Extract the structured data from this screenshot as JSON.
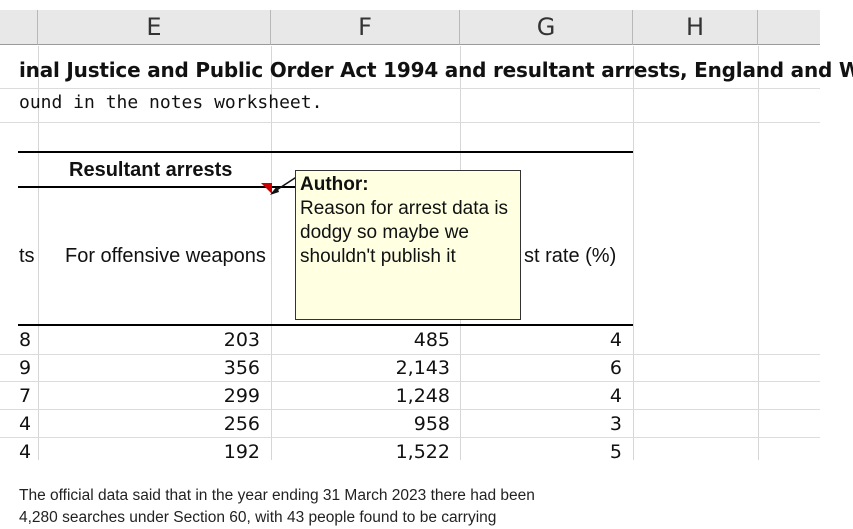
{
  "sheet": {
    "columns": [
      "E",
      "F",
      "G",
      "H"
    ],
    "title": "inal Justice and Public Order Act 1994 and resultant arrests, England and Wales",
    "note": "ound in the notes worksheet.",
    "group_header": "Resultant arrests",
    "col_header_left": "ts",
    "col_header_e": "For offensive weapons",
    "col_header_g": "st rate (%)",
    "rows": [
      {
        "d": "8",
        "e": "203",
        "f": "485",
        "g": "4"
      },
      {
        "d": "9",
        "e": "356",
        "f": "2,143",
        "g": "6"
      },
      {
        "d": "7",
        "e": "299",
        "f": "1,248",
        "g": "4"
      },
      {
        "d": "4",
        "e": "256",
        "f": "958",
        "g": "3"
      },
      {
        "d": "4",
        "e": "192",
        "f": "1,522",
        "g": "5"
      }
    ]
  },
  "comment": {
    "author": "Author:",
    "lines": [
      "Reason for arrest data is",
      "dodgy so maybe we",
      "shouldn't publish it"
    ]
  },
  "caption": {
    "lines": [
      "The official data said that in the year ending 31 March 2023 there had been",
      "4,280 searches under Section 60, with 43 people found to be carrying"
    ]
  },
  "colors": {
    "comment_bg": "#ffffe1",
    "indicator": "#cc0000",
    "header_bg": "#e8e8e8"
  }
}
